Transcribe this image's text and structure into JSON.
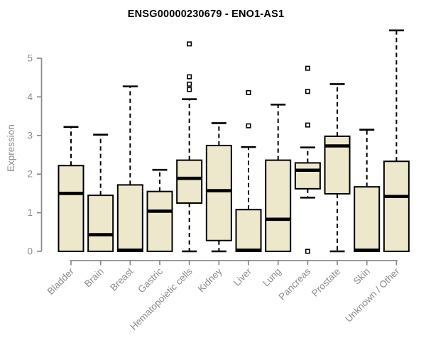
{
  "title": "ENSG00000230679 - ENO1-AS1",
  "colors": {
    "box_fill": "#EDE8CC",
    "box_stroke": "#000000",
    "median": "#000000",
    "whisker": "#000000",
    "outlier_stroke": "#000000",
    "outlier_fill": "#FFFFFF",
    "axis": "#8A8A8A",
    "tick_text": "#8C8C8C",
    "title_text": "#000000"
  },
  "chart_data": {
    "type": "boxplot",
    "title": "ENSG00000230679 - ENO1-AS1",
    "xlabel": "",
    "ylabel": "Expression",
    "ylim": [
      0,
      5.9
    ],
    "yticks": [
      0,
      1,
      2,
      3,
      4,
      5
    ],
    "grid": false,
    "legend": "none",
    "categories": [
      "Bladder",
      "Brain",
      "Breast",
      "Gastric",
      "Hematopoietic cells",
      "Kidney",
      "Liver",
      "Lung",
      "Pancreas",
      "Prostate",
      "Skin",
      "Unknown / Other"
    ],
    "series": [
      {
        "name": "Bladder",
        "low": 0,
        "q1": 0,
        "median": 1.5,
        "q3": 2.22,
        "high": 3.22,
        "outliers": []
      },
      {
        "name": "Brain",
        "low": 0,
        "q1": 0,
        "median": 0.43,
        "q3": 1.45,
        "high": 3.02,
        "outliers": []
      },
      {
        "name": "Breast",
        "low": 0,
        "q1": 0,
        "median": 0.03,
        "q3": 1.72,
        "high": 4.27,
        "outliers": []
      },
      {
        "name": "Gastric",
        "low": 0,
        "q1": 0,
        "median": 1.04,
        "q3": 1.55,
        "high": 2.11,
        "outliers": []
      },
      {
        "name": "Hematopoietic cells",
        "low": 0,
        "q1": 1.25,
        "median": 1.89,
        "q3": 2.36,
        "high": 3.94,
        "outliers": [
          4.19,
          4.33,
          4.52,
          5.37
        ]
      },
      {
        "name": "Kidney",
        "low": 0,
        "q1": 0.28,
        "median": 1.57,
        "q3": 2.74,
        "high": 3.32,
        "outliers": []
      },
      {
        "name": "Liver",
        "low": 0,
        "q1": 0,
        "median": 0.03,
        "q3": 1.08,
        "high": 2.7,
        "outliers": [
          3.25,
          4.11
        ]
      },
      {
        "name": "Lung",
        "low": 0,
        "q1": 0,
        "median": 0.83,
        "q3": 2.36,
        "high": 3.8,
        "outliers": []
      },
      {
        "name": "Pancreas",
        "low": 1.39,
        "q1": 1.62,
        "median": 2.1,
        "q3": 2.29,
        "high": 2.69,
        "outliers": [
          0,
          3.27,
          4.14,
          4.74
        ]
      },
      {
        "name": "Prostate",
        "low": 0,
        "q1": 1.49,
        "median": 2.73,
        "q3": 2.98,
        "high": 4.33,
        "outliers": []
      },
      {
        "name": "Skin",
        "low": 0,
        "q1": 0,
        "median": 0.03,
        "q3": 1.67,
        "high": 3.15,
        "outliers": []
      },
      {
        "name": "Unknown / Other",
        "low": 0,
        "q1": 0,
        "median": 1.42,
        "q3": 2.33,
        "high": 5.72,
        "outliers": []
      }
    ]
  }
}
